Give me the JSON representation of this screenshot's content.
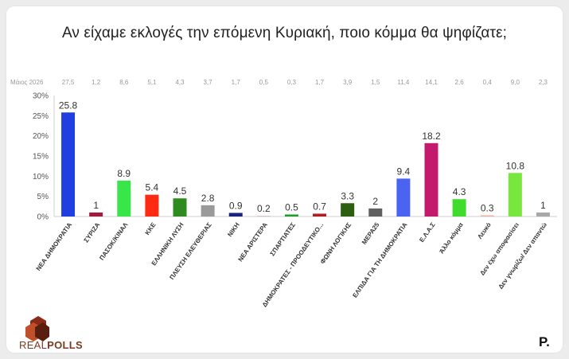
{
  "title": "Αν είχαμε εκλογές την επόμενη Κυριακή, ποιο κόμμα θα ψηφίζατε;",
  "prev_poll_label": "Μάιος 2026",
  "logo": {
    "real": "REAL",
    "polls": "POLLS"
  },
  "publisher_mark": "P.",
  "chart_data": {
    "type": "bar",
    "categories": [
      "ΝΕΑ ΔΗΜΟΚΡΑΤΙΑ",
      "ΣΥΡΙΖΑ",
      "ΠΑΣΟΚ/ΚΙΝΑΛ",
      "ΚΚΕ",
      "ΕΛΛΗΝΙΚΗ ΛΥΣΗ",
      "ΠΛΕΥΣΗ ΕΛΕΥΘΕΡΙΑΣ",
      "ΝΙΚΗ",
      "ΝΕΑ ΑΡΙΣΤΕΡΑ",
      "ΣΠΑΡΤΙΑΤΕΣ",
      "ΔΗΜΟΚΡΑΤΕΣ - ΠΡΟΟΔΕΥΤΙΚΟ...",
      "ΦΩΝΗ ΛΟΓΙΚΗΣ",
      "ΜΕΡΑ25",
      "ΕΛΠΙΔΑ ΓΙΑ ΤΗ ΔΗΜΟΚΡΑΤΙΑ",
      "Ε.Λ.Α.Σ",
      "Άλλο κόμμα",
      "Λευκό",
      "Δεν έχω αποφασίσει",
      "Δεν γνωρίζω/ Δεν απαντώ"
    ],
    "values": [
      25.8,
      1,
      8.9,
      5.4,
      4.5,
      2.8,
      0.9,
      0.2,
      0.5,
      0.7,
      3.3,
      2,
      9.4,
      18.2,
      4.3,
      0.3,
      10.8,
      1
    ],
    "value_labels": [
      "25.8",
      "1",
      "8.9",
      "5.4",
      "4.5",
      "2.8",
      "0.9",
      "0.2",
      "0.5",
      "0.7",
      "3.3",
      "2",
      "9.4",
      "18.2",
      "4.3",
      "0.3",
      "10.8",
      "1"
    ],
    "previous_values": [
      "27,5",
      "1,2",
      "8,6",
      "5,1",
      "4,3",
      "3,7",
      "1,7",
      "0,5",
      "0,3",
      "1,7",
      "3,9",
      "1,5",
      "11,4",
      "14,1",
      "2,6",
      "0,4",
      "9,0",
      "2,3"
    ],
    "colors": [
      "#1f3fe0",
      "#a01e3c",
      "#39e64a",
      "#ff2a12",
      "#2e8b1e",
      "#9a9a9a",
      "#1a237e",
      "#d8c6c6",
      "#1e9e2a",
      "#b01e24",
      "#2e5e10",
      "#606060",
      "#4a63f0",
      "#c41a6e",
      "#3fdc2e",
      "#f0b2a6",
      "#78e63c",
      "#a8a8a8"
    ],
    "ylim": [
      0,
      30
    ],
    "yticks": [
      0,
      5,
      10,
      15,
      20,
      25,
      30
    ],
    "ytick_labels": [
      "0%",
      "5%",
      "10%",
      "15%",
      "20%",
      "25%",
      "30%"
    ],
    "grid": false,
    "legend": "none"
  }
}
